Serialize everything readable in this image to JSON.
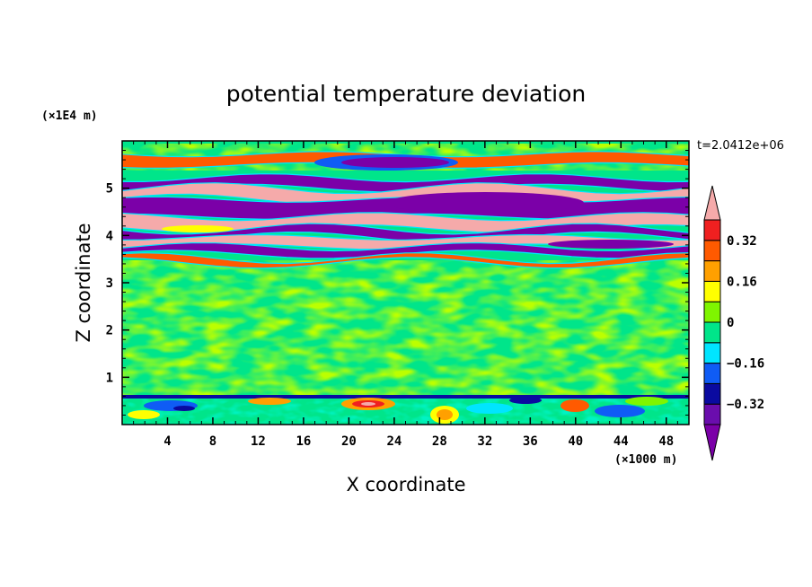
{
  "chart_data": {
    "type": "heatmap",
    "title": "potential temperature deviation",
    "xlabel": "X coordinate",
    "ylabel": "Z coordinate",
    "x_unit": "(×1000 m)",
    "y_unit": "(×1E4 m)",
    "time_label": "t=2.0412e+06",
    "xlim": [
      0,
      50
    ],
    "ylim": [
      0,
      6
    ],
    "x_ticks": [
      4,
      8,
      12,
      16,
      20,
      24,
      28,
      32,
      36,
      40,
      44,
      48
    ],
    "y_ticks": [
      1,
      2,
      3,
      4,
      5
    ],
    "colorbar": {
      "levels": [
        -0.4,
        -0.32,
        -0.24,
        -0.16,
        -0.08,
        0,
        0.08,
        0.16,
        0.24,
        0.32,
        0.4
      ],
      "labels": [
        "0.32",
        "0.16",
        "0",
        "−0.16",
        "−0.32"
      ],
      "label_values": [
        0.32,
        0.16,
        0,
        -0.16,
        -0.32
      ],
      "colors": [
        "#7b00a8",
        "#6a0dad",
        "#0a0aa0",
        "#0f5cf5",
        "#00e5ff",
        "#00e58a",
        "#7ff500",
        "#ffff00",
        "#ffa000",
        "#ff5a00",
        "#f02020",
        "#f5aaaa"
      ]
    },
    "bands": [
      {
        "z_bottom": 5.48,
        "z_top": 5.72,
        "value": 0.3
      },
      {
        "z_bottom": 5.0,
        "z_top": 5.22,
        "value": -0.45
      },
      {
        "z_bottom": 4.76,
        "z_top": 5.0,
        "value": 0.45
      },
      {
        "z_bottom": 4.4,
        "z_top": 4.76,
        "value": -0.45
      },
      {
        "z_bottom": 4.14,
        "z_top": 4.4,
        "value": 0.45
      },
      {
        "z_bottom": 3.96,
        "z_top": 4.14,
        "value": -0.45
      },
      {
        "z_bottom": 3.76,
        "z_top": 3.96,
        "value": 0.45
      },
      {
        "z_bottom": 3.6,
        "z_top": 3.76,
        "value": -0.45
      },
      {
        "z_bottom": 3.42,
        "z_top": 3.52,
        "value": 0.3
      }
    ]
  }
}
